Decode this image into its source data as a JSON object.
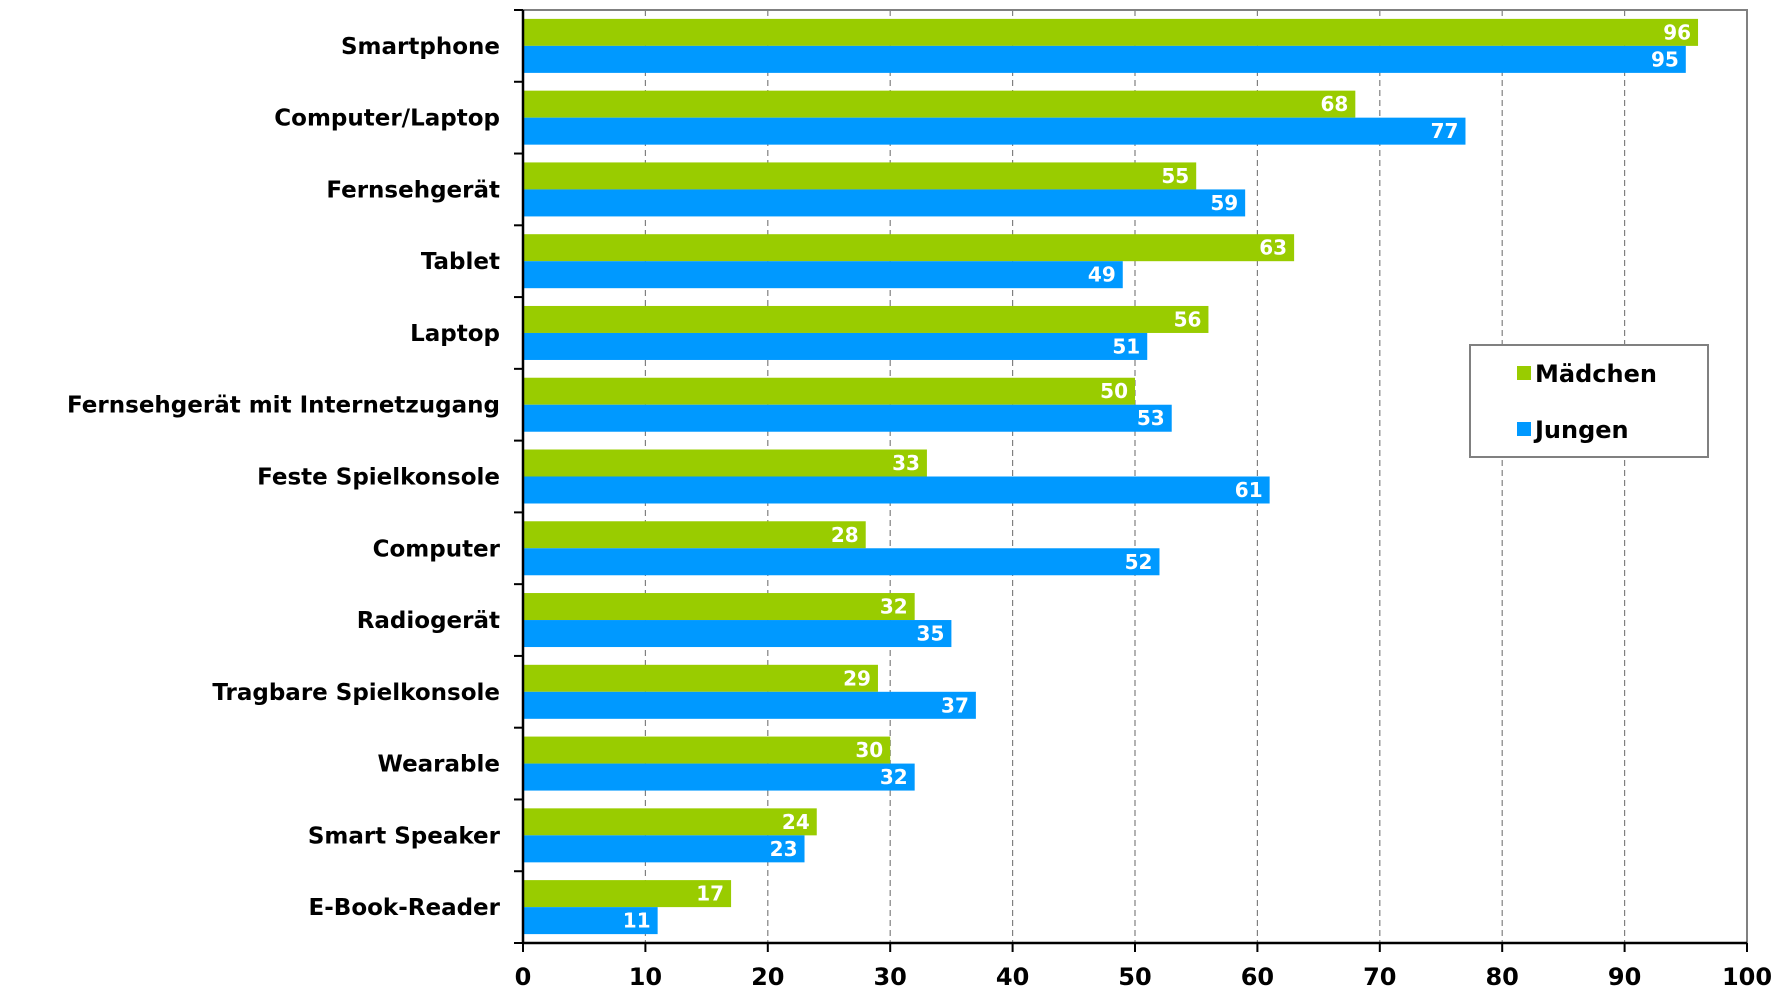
{
  "chart_data": {
    "type": "bar",
    "orientation": "horizontal",
    "categories": [
      "Smartphone",
      "Computer/Laptop",
      "Fernsehgerät",
      "Tablet",
      "Laptop",
      "Fernsehgerät mit Internetzugang",
      "Feste Spielkonsole",
      "Computer",
      "Radiogerät",
      "Tragbare Spielkonsole",
      "Wearable",
      "Smart Speaker",
      "E-Book-Reader"
    ],
    "series": [
      {
        "name": "Mädchen",
        "color": "#99cc00",
        "values": [
          96,
          68,
          55,
          63,
          56,
          50,
          33,
          28,
          32,
          29,
          30,
          24,
          17
        ]
      },
      {
        "name": "Jungen",
        "color": "#0099ff",
        "values": [
          95,
          77,
          59,
          49,
          51,
          53,
          61,
          52,
          35,
          37,
          32,
          23,
          11
        ]
      }
    ],
    "title": "",
    "xlabel": "",
    "ylabel": "",
    "xlim": [
      0,
      100
    ],
    "xticks": [
      "0",
      "10",
      "20",
      "30",
      "40",
      "50",
      "60",
      "70",
      "80",
      "90",
      "100"
    ],
    "grid": "vertical dashed",
    "legend_position": "right"
  }
}
